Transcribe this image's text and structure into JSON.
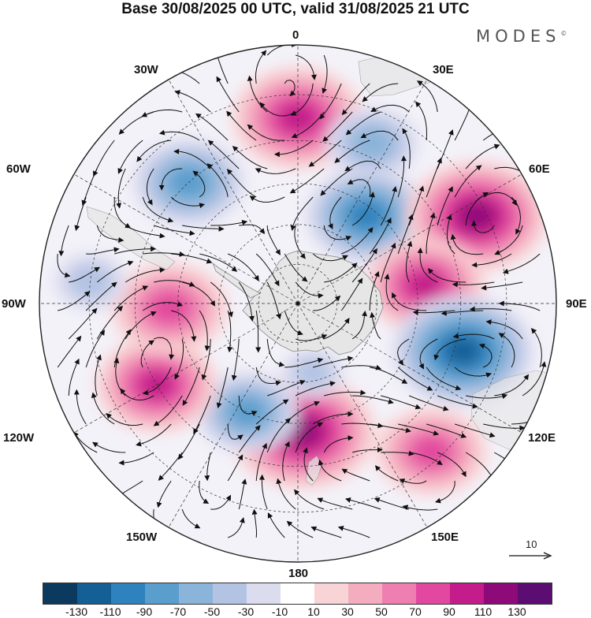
{
  "header": {
    "title": "Base 30/08/2025 00 UTC, valid 31/08/2025 21 UTC",
    "brand": "MODES",
    "brand_mark": "©"
  },
  "map": {
    "projection": "south-polar-stereographic",
    "longitude_labels": [
      "0",
      "30E",
      "60E",
      "90E",
      "120E",
      "150E",
      "180",
      "150W",
      "120W",
      "90W",
      "60W",
      "30W"
    ],
    "anomaly_centers": [
      {
        "sign": "positive",
        "lon": 0,
        "lat": -45,
        "peak": 100
      },
      {
        "sign": "negative",
        "lon": 25,
        "lat": -47,
        "peak": -60
      },
      {
        "sign": "negative",
        "lon": 38,
        "lat": -62,
        "peak": -90
      },
      {
        "sign": "positive",
        "lon": 64,
        "lat": -42,
        "peak": 110
      },
      {
        "sign": "positive",
        "lon": 82,
        "lat": -58,
        "peak": 90
      },
      {
        "sign": "negative",
        "lon": 106,
        "lat": -48,
        "peak": -110
      },
      {
        "sign": "positive",
        "lon": 138,
        "lat": -42,
        "peak": 80
      },
      {
        "sign": "positive",
        "lon": 178,
        "lat": -58,
        "peak": 115
      },
      {
        "sign": "negative",
        "lon": 205,
        "lat": -60,
        "peak": -70
      },
      {
        "sign": "positive",
        "lon": 240,
        "lat": -50,
        "peak": 90
      },
      {
        "sign": "positive",
        "lon": 268,
        "lat": -58,
        "peak": 85
      },
      {
        "sign": "negative",
        "lon": 276,
        "lat": -40,
        "peak": -40
      },
      {
        "sign": "negative",
        "lon": 318,
        "lat": -50,
        "peak": -80
      },
      {
        "sign": "negative",
        "lon": 168,
        "lat": -72,
        "peak": -30
      }
    ]
  },
  "vector_reference": {
    "value": "10"
  },
  "colorbar": {
    "colors": [
      "#0b3a5e",
      "#145f96",
      "#2e82bd",
      "#5a9ecd",
      "#8ab4d9",
      "#b3c3e3",
      "#dcdcef",
      "#ffffff",
      "#f9d4d6",
      "#f4acbf",
      "#ee7fb0",
      "#e2489f",
      "#c41c8a",
      "#8f0a79",
      "#5c0d72"
    ],
    "ticks": [
      "-130",
      "-110",
      "-90",
      "-70",
      "-50",
      "-30",
      "-10",
      "10",
      "30",
      "50",
      "70",
      "90",
      "110",
      "130"
    ]
  }
}
